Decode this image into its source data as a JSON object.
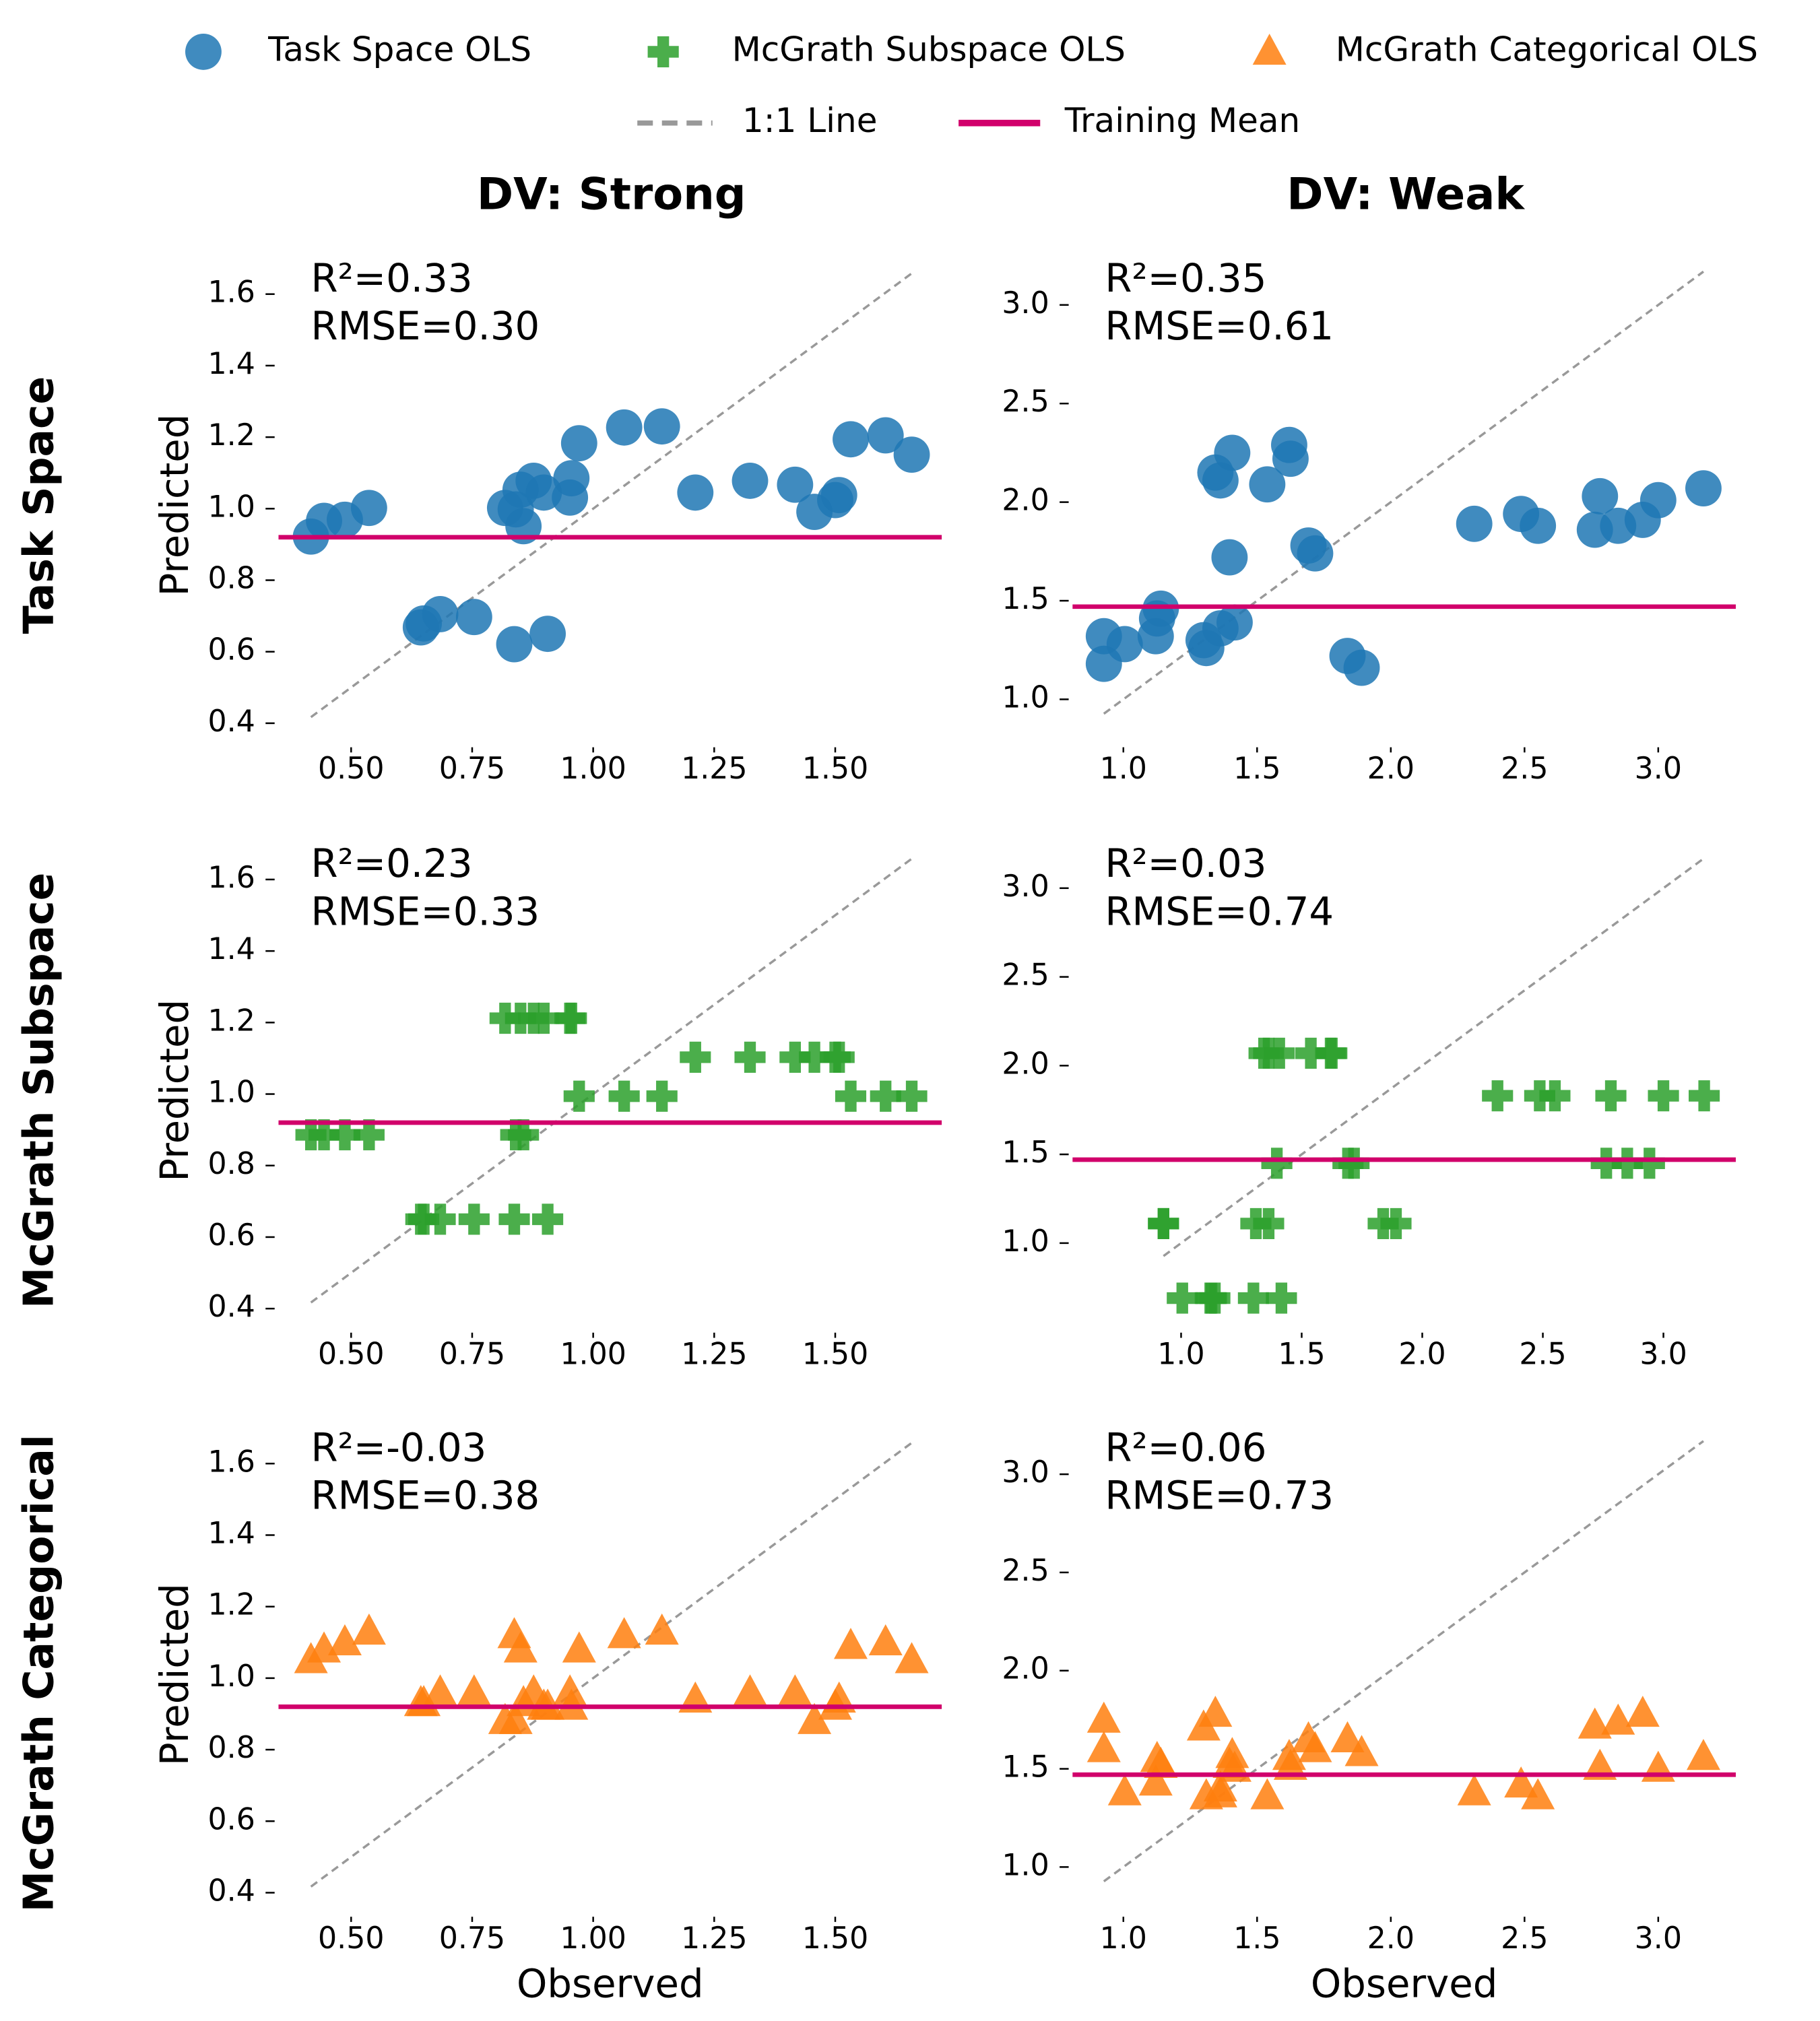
{
  "column_titles": [
    "DV: Strong",
    "DV: Weak"
  ],
  "row_titles": [
    "Task Space",
    "McGrath Subspace",
    "McGrath Categorical"
  ],
  "legend": {
    "identity_line": "1:1 Line",
    "identity_color": "#999999",
    "training_mean_line": "Training Mean",
    "training_mean_color": "#d1006b"
  },
  "chart_data": [
    {
      "type": "scatter",
      "ylabel": "Predicted",
      "annotation": [
        "R²=0.33",
        "RMSE=0.30"
      ],
      "x": [
        0.417,
        0.444,
        0.487,
        0.537,
        0.644,
        0.65,
        0.684,
        0.754,
        0.818,
        0.837,
        0.84,
        0.85,
        0.856,
        0.877,
        0.898,
        0.906,
        0.952,
        0.955,
        0.971,
        1.064,
        1.142,
        1.211,
        1.324,
        1.417,
        1.457,
        1.5,
        1.508,
        1.532,
        1.604,
        1.658
      ],
      "series": [
        {
          "name": "Task Space OLS",
          "color": "#1f77b4",
          "marker": "circle",
          "values": [
            0.922,
            0.966,
            0.969,
            1.002,
            0.668,
            0.679,
            0.705,
            0.697,
            1.002,
            0.621,
            0.998,
            1.053,
            0.951,
            1.078,
            1.045,
            0.65,
            1.031,
            1.085,
            1.183,
            1.227,
            1.23,
            1.045,
            1.078,
            1.067,
            0.991,
            1.024,
            1.038,
            1.194,
            1.205,
            1.151
          ]
        }
      ],
      "training_mean": 0.92,
      "xlim": [
        0.35,
        1.72
      ],
      "ylim": [
        0.34,
        1.68
      ],
      "xticks": [
        {
          "value": 0.5,
          "label": "0.50"
        },
        0.75,
        {
          "value": 1,
          "label": "1.00"
        },
        1.25,
        {
          "value": 1.5,
          "label": "1.50"
        }
      ],
      "yticks": [
        0.4,
        0.6,
        0.8,
        {
          "value": 1,
          "label": "1.0"
        },
        1.2,
        1.4,
        1.6
      ]
    },
    {
      "type": "scatter",
      "annotation": [
        "R²=0.35",
        "RMSE=0.61"
      ],
      "x": [
        0.927,
        0.927,
        1.005,
        1.121,
        1.126,
        1.14,
        1.3,
        1.31,
        1.344,
        1.363,
        1.363,
        1.407,
        1.397,
        1.416,
        1.538,
        1.62,
        1.625,
        1.692,
        1.717,
        1.838,
        1.891,
        2.312,
        2.487,
        2.55,
        2.763,
        2.782,
        2.85,
        2.942,
        3.0,
        3.169
      ],
      "series": [
        {
          "name": "Task Space OLS",
          "color": "#1f77b4",
          "marker": "circle",
          "values": [
            1.18,
            1.32,
            1.28,
            1.32,
            1.41,
            1.46,
            1.3,
            1.26,
            2.15,
            2.11,
            1.36,
            2.25,
            1.72,
            1.39,
            2.09,
            2.29,
            2.22,
            1.78,
            1.74,
            1.22,
            1.16,
            1.89,
            1.94,
            1.88,
            1.86,
            2.03,
            1.88,
            1.91,
            2.01,
            2.07
          ]
        }
      ],
      "training_mean": 1.47,
      "xlim": [
        0.81,
        3.29
      ],
      "ylim": [
        0.77,
        3.2
      ],
      "xticks": [
        {
          "value": 1,
          "label": "1.0"
        },
        1.5,
        {
          "value": 2,
          "label": "2.0"
        },
        2.5,
        {
          "value": 3,
          "label": "3.0"
        }
      ],
      "yticks": [
        {
          "value": 1,
          "label": "1.0"
        },
        1.5,
        {
          "value": 2,
          "label": "2.0"
        },
        2.5,
        {
          "value": 3,
          "label": "3.0"
        }
      ]
    },
    {
      "type": "scatter",
      "ylabel": "Predicted",
      "annotation": [
        "R²=0.23",
        "RMSE=0.33"
      ],
      "x": [
        0.417,
        0.444,
        0.487,
        0.537,
        0.644,
        0.65,
        0.684,
        0.754,
        0.818,
        0.837,
        0.84,
        0.85,
        0.856,
        0.877,
        0.898,
        0.906,
        0.952,
        0.955,
        0.971,
        1.064,
        1.142,
        1.211,
        1.324,
        1.417,
        1.457,
        1.5,
        1.508,
        1.532,
        1.604,
        1.658
      ],
      "series": [
        {
          "name": "McGrath Subspace OLS",
          "color": "#2ca02c",
          "marker": "plus",
          "values": [
            0.886,
            0.886,
            0.886,
            0.886,
            0.65,
            0.65,
            0.65,
            0.65,
            1.212,
            0.65,
            0.886,
            1.212,
            0.886,
            1.212,
            1.212,
            0.65,
            1.212,
            1.212,
            0.994,
            0.994,
            0.994,
            1.103,
            1.103,
            1.103,
            1.103,
            1.103,
            1.103,
            0.994,
            0.994,
            0.994
          ]
        }
      ],
      "training_mean": 0.92,
      "xlim": [
        0.35,
        1.72
      ],
      "ylim": [
        0.34,
        1.68
      ],
      "xticks": [
        {
          "value": 0.5,
          "label": "0.50"
        },
        0.75,
        {
          "value": 1,
          "label": "1.00"
        },
        1.25,
        {
          "value": 1.5,
          "label": "1.50"
        }
      ],
      "yticks": [
        0.4,
        0.6,
        0.8,
        {
          "value": 1,
          "label": "1.0"
        },
        1.2,
        1.4,
        1.6
      ]
    },
    {
      "type": "scatter",
      "annotation": [
        "R²=0.03",
        "RMSE=0.74"
      ],
      "x": [
        0.927,
        0.927,
        1.005,
        1.121,
        1.126,
        1.14,
        1.3,
        1.31,
        1.344,
        1.363,
        1.363,
        1.407,
        1.397,
        1.416,
        1.538,
        1.62,
        1.625,
        1.692,
        1.717,
        1.838,
        1.891,
        2.312,
        2.487,
        2.55,
        2.763,
        2.782,
        2.85,
        2.942,
        3.0,
        3.169
      ],
      "series": [
        {
          "name": "McGrath Subspace OLS",
          "color": "#2ca02c",
          "marker": "plus",
          "values": [
            1.11,
            1.11,
            0.69,
            0.69,
            0.69,
            0.69,
            0.69,
            1.11,
            2.07,
            2.07,
            1.11,
            2.07,
            1.45,
            0.69,
            2.07,
            2.07,
            2.07,
            1.45,
            1.45,
            1.11,
            1.11,
            1.83,
            1.83,
            1.83,
            1.45,
            1.83,
            1.45,
            1.45,
            1.83,
            1.83
          ]
        }
      ],
      "training_mean": 1.47,
      "xlim": [
        0.55,
        3.3
      ],
      "ylim": [
        0.51,
        3.21
      ],
      "xticks": [
        {
          "value": 1,
          "label": "1.0"
        },
        1.5,
        {
          "value": 2,
          "label": "2.0"
        },
        2.5,
        {
          "value": 3,
          "label": "3.0"
        }
      ],
      "yticks": [
        {
          "value": 1,
          "label": "1.0"
        },
        1.5,
        {
          "value": 2,
          "label": "2.0"
        },
        2.5,
        {
          "value": 3,
          "label": "3.0"
        }
      ]
    },
    {
      "type": "scatter",
      "ylabel": "Predicted",
      "xlabel": "Observed",
      "annotation": [
        "R²=-0.03",
        "RMSE=0.38"
      ],
      "x": [
        0.417,
        0.444,
        0.487,
        0.537,
        0.644,
        0.65,
        0.684,
        0.754,
        0.818,
        0.837,
        0.84,
        0.85,
        0.856,
        0.877,
        0.898,
        0.906,
        0.952,
        0.955,
        0.971,
        1.064,
        1.142,
        1.211,
        1.324,
        1.417,
        1.457,
        1.5,
        1.508,
        1.532,
        1.604,
        1.658
      ],
      "series": [
        {
          "name": "McGrath Categorical OLS",
          "color": "#ff7f0e",
          "marker": "triangle",
          "values": [
            1.05,
            1.08,
            1.1,
            1.13,
            0.93,
            0.93,
            0.96,
            0.96,
            0.88,
            1.12,
            0.88,
            1.08,
            0.93,
            0.96,
            0.92,
            0.92,
            0.96,
            0.92,
            1.08,
            1.12,
            1.13,
            0.94,
            0.96,
            0.96,
            0.88,
            0.92,
            0.94,
            1.09,
            1.1,
            1.05
          ]
        }
      ],
      "training_mean": 0.92,
      "xlim": [
        0.35,
        1.72
      ],
      "ylim": [
        0.34,
        1.68
      ],
      "xticks": [
        {
          "value": 0.5,
          "label": "0.50"
        },
        0.75,
        {
          "value": 1,
          "label": "1.00"
        },
        1.25,
        {
          "value": 1.5,
          "label": "1.50"
        }
      ],
      "yticks": [
        0.4,
        0.6,
        0.8,
        {
          "value": 1,
          "label": "1.0"
        },
        1.2,
        1.4,
        1.6
      ]
    },
    {
      "type": "scatter",
      "xlabel": "Observed",
      "annotation": [
        "R²=0.06",
        "RMSE=0.73"
      ],
      "x": [
        0.927,
        0.927,
        1.005,
        1.121,
        1.126,
        1.14,
        1.3,
        1.31,
        1.344,
        1.363,
        1.363,
        1.407,
        1.397,
        1.416,
        1.538,
        1.62,
        1.625,
        1.692,
        1.717,
        1.838,
        1.891,
        2.312,
        2.487,
        2.55,
        2.763,
        2.782,
        2.85,
        2.942,
        3.0,
        3.169
      ],
      "series": [
        {
          "name": "McGrath Categorical OLS",
          "color": "#ff7f0e",
          "marker": "triangle",
          "values": [
            1.75,
            1.6,
            1.38,
            1.43,
            1.55,
            1.52,
            1.71,
            1.36,
            1.78,
            1.4,
            1.37,
            1.57,
            1.52,
            1.5,
            1.36,
            1.56,
            1.51,
            1.65,
            1.6,
            1.65,
            1.58,
            1.38,
            1.42,
            1.36,
            1.72,
            1.51,
            1.74,
            1.78,
            1.5,
            1.56
          ]
        }
      ],
      "training_mean": 1.47,
      "xlim": [
        0.81,
        3.29
      ],
      "ylim": [
        0.76,
        3.2
      ],
      "xticks": [
        {
          "value": 1,
          "label": "1.0"
        },
        1.5,
        {
          "value": 2,
          "label": "2.0"
        },
        2.5,
        {
          "value": 3,
          "label": "3.0"
        }
      ],
      "yticks": [
        {
          "value": 1,
          "label": "1.0"
        },
        1.5,
        {
          "value": 2,
          "label": "2.0"
        },
        2.5,
        {
          "value": 3,
          "label": "3.0"
        }
      ]
    }
  ]
}
